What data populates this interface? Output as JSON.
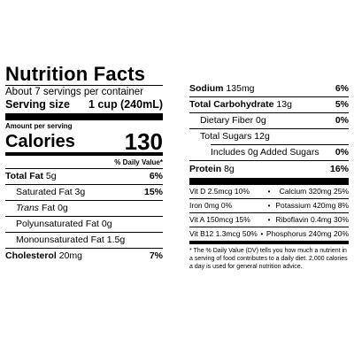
{
  "left": {
    "title": "Nutrition Facts",
    "servings": "About 7 servings per container",
    "serving_size_label": "Serving size",
    "serving_size_value": "1 cup (240mL)",
    "amount_per_serving": "Amount per serving",
    "calories_label": "Calories",
    "calories_value": "130",
    "daily_value_header": "% Daily Value*",
    "rows": [
      {
        "label": "Total Fat",
        "amount": "5g",
        "dv": "6%"
      },
      {
        "label": "Saturated Fat",
        "amount": "3g",
        "dv": "15%"
      },
      {
        "label": "Trans",
        "label_rest": "Fat 0g"
      },
      {
        "label": "Polyunsaturated Fat",
        "amount": "0g"
      },
      {
        "label": "Monounsaturated Fat",
        "amount": "1.5g"
      },
      {
        "label": "Cholesterol",
        "amount": "20mg",
        "dv": "7%"
      }
    ]
  },
  "right": {
    "rows": [
      {
        "label": "Sodium",
        "amount": "135mg",
        "dv": "6%"
      },
      {
        "label": "Total Carbohydrate",
        "amount": "13g",
        "dv": "5%"
      },
      {
        "label": "Dietary Fiber 0g",
        "dv": "0%"
      },
      {
        "label": "Total Sugars 12g"
      },
      {
        "label": "Includes 0g Added Sugars",
        "dv": "0%"
      },
      {
        "label": "Protein",
        "amount": "8g",
        "dv": "16%"
      }
    ],
    "vitamins": [
      {
        "left": "Vit D 2.5mcg 10%",
        "right": "Calcium 320mg 25%"
      },
      {
        "left": "Iron 0mg 0%",
        "right": "Potassium 420mg 8%"
      },
      {
        "left": "Vit A 150mcg 15%",
        "right": "Riboflavin 0.4mg 30%"
      },
      {
        "left": "Vit B12 1.3mcg 50%",
        "right": "Phosphorus 240mg 20%"
      }
    ],
    "dot": "•",
    "footnote": "* The % Daily Value (DV) tells you how much a nutrient in a serving of food contributes to a daily diet. 2,000 calories a day is used for general nutrition advice."
  }
}
